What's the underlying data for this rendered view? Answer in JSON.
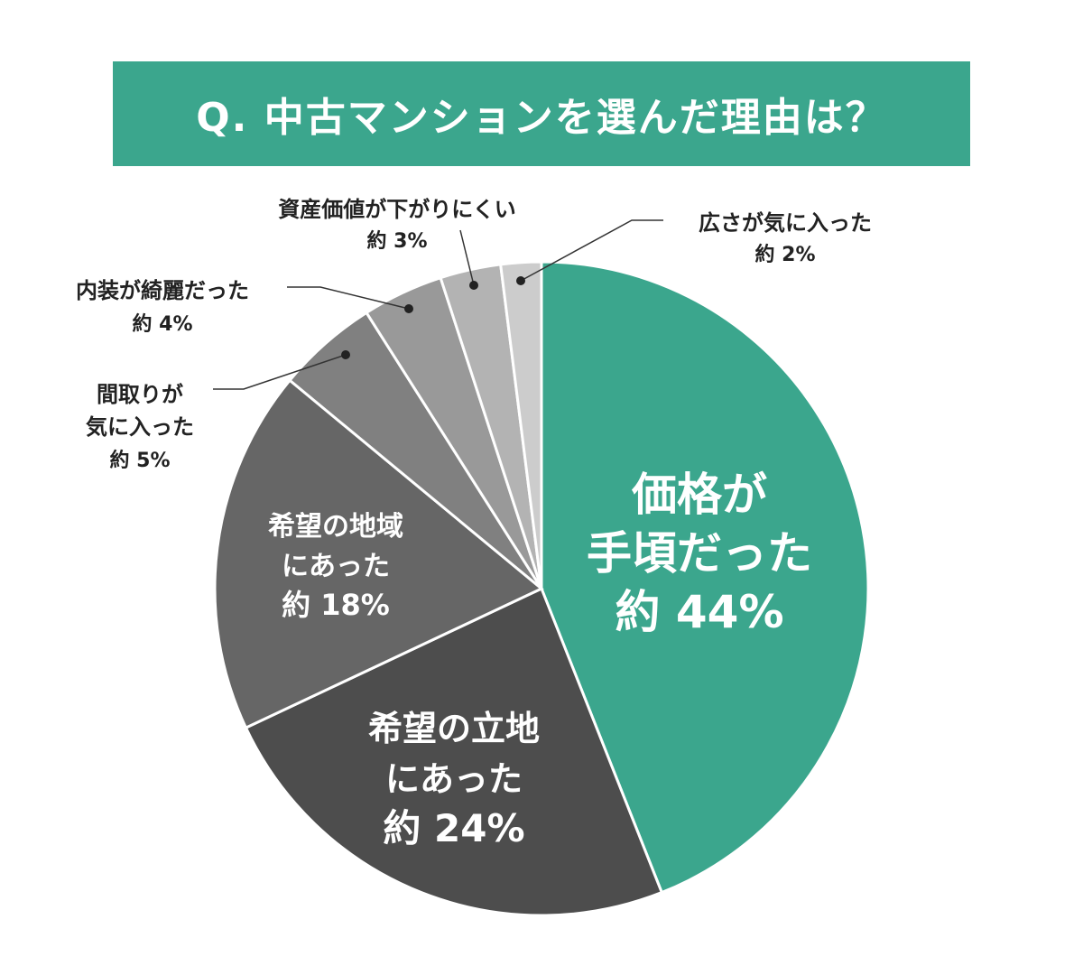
{
  "title": "Q. 中古マンションを選んだ理由は？",
  "chart_data": {
    "type": "pie",
    "title": "Q. 中古マンションを選んだ理由は？",
    "unit": "%",
    "prefix": "約",
    "slices": [
      {
        "label": [
          "価格が",
          "手頃だった"
        ],
        "value": 44,
        "value_text": "約 44%",
        "color": "#3ba68d"
      },
      {
        "label": [
          "希望の立地",
          "にあった"
        ],
        "value": 24,
        "value_text": "約 24%",
        "color": "#4d4d4d"
      },
      {
        "label": [
          "希望の地域",
          "にあった"
        ],
        "value": 18,
        "value_text": "約 18%",
        "color": "#666666"
      },
      {
        "label": [
          "間取りが",
          "気に入った"
        ],
        "value": 5,
        "value_text": "約 5%",
        "color": "#808080"
      },
      {
        "label": [
          "内装が綺麗だった"
        ],
        "value": 4,
        "value_text": "約 4%",
        "color": "#999999"
      },
      {
        "label": [
          "資産価値が下がりにくい"
        ],
        "value": 3,
        "value_text": "約 3%",
        "color": "#b3b3b3"
      },
      {
        "label": [
          "広さが気に入った"
        ],
        "value": 2,
        "value_text": "約 2%",
        "color": "#cccccc"
      }
    ]
  }
}
